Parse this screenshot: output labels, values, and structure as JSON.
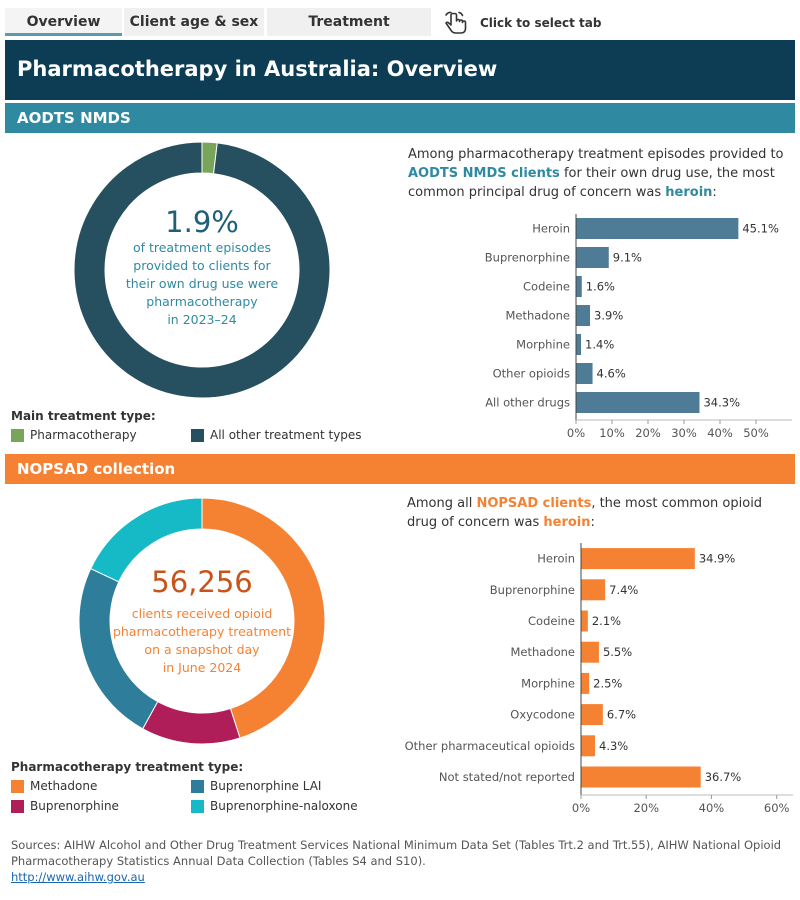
{
  "tabs": [
    {
      "label": "Overview",
      "active": true
    },
    {
      "label": "Client age & sex",
      "active": false
    },
    {
      "label": "Treatment",
      "active": false
    }
  ],
  "tab_hint": "Click to select tab",
  "tab_hint_icon": "pointer-hand-icon",
  "title": "Pharmacotherapy in Australia: Overview",
  "colors": {
    "navy": "#0c3d54",
    "teal": "#2f8aa1",
    "orange": "#f58233",
    "dark_teal": "#26505f",
    "green": "#78a55a",
    "bar_blue": "#4e7b95",
    "orange_text": "#c8541c",
    "methadone": "#f58233",
    "buprenorphine_lai": "#2e7d9a",
    "buprenorphine": "#b01e5a",
    "buprenorphine_naloxone": "#15bac6"
  },
  "aodts": {
    "section_title": "AODTS NMDS",
    "stat": "1.9%",
    "stat_lines": [
      "of treatment episodes",
      "provided to clients for",
      "their own drug use were",
      "pharmacotherapy",
      "in 2023–24"
    ],
    "legend_title": "Main treatment type:",
    "legend": [
      "Pharmacotherapy",
      "All other treatment types"
    ],
    "intro_parts": [
      "Among pharmacotherapy treatment episodes provided to",
      "AODTS NMDS clients",
      "for their own drug use, the most common principal drug of concern was",
      "heroin",
      ":"
    ]
  },
  "nopsad": {
    "section_title": "NOPSAD collection",
    "stat": "56,256",
    "stat_lines": [
      "clients received opioid",
      "pharmacotherapy treatment",
      "on a snapshot day",
      "in June 2024"
    ],
    "legend_title": "Pharmacotherapy treatment type:",
    "legend": [
      "Methadone",
      "Buprenorphine LAI",
      "Buprenorphine",
      "Buprenorphine-naloxone"
    ],
    "intro_parts": [
      "Among all",
      "NOPSAD clients",
      ", the most common opioid drug of concern was",
      "heroin",
      ":"
    ]
  },
  "chart_data": [
    {
      "type": "pie",
      "categories": [
        "Pharmacotherapy",
        "All other treatment types"
      ],
      "values": [
        1.9,
        98.1
      ],
      "legend_position": "bottom"
    },
    {
      "type": "bar",
      "orientation": "horizontal",
      "categories": [
        "Heroin",
        "Buprenorphine",
        "Codeine",
        "Methadone",
        "Morphine",
        "Other opioids",
        "All other drugs"
      ],
      "values": [
        45.1,
        9.1,
        1.6,
        3.9,
        1.4,
        4.6,
        34.3
      ],
      "value_labels": [
        "45.1%",
        "9.1%",
        "1.6%",
        "3.9%",
        "1.4%",
        "4.6%",
        "34.3%"
      ],
      "xlim": [
        0,
        60
      ],
      "xticks": [
        0,
        10,
        20,
        30,
        40,
        50
      ],
      "xtick_labels": [
        "0%",
        "10%",
        "20%",
        "30%",
        "40%",
        "50%"
      ],
      "grid": false
    },
    {
      "type": "pie",
      "categories": [
        "Methadone",
        "Buprenorphine",
        "Buprenorphine LAI",
        "Buprenorphine-naloxone"
      ],
      "values": [
        45,
        13,
        24,
        18
      ],
      "legend_position": "bottom"
    },
    {
      "type": "bar",
      "orientation": "horizontal",
      "categories": [
        "Heroin",
        "Buprenorphine",
        "Codeine",
        "Methadone",
        "Morphine",
        "Oxycodone",
        "Other pharmaceutical opioids",
        "Not stated/not reported"
      ],
      "values": [
        34.9,
        7.4,
        2.1,
        5.5,
        2.5,
        6.7,
        4.3,
        36.7
      ],
      "value_labels": [
        "34.9%",
        "7.4%",
        "2.1%",
        "5.5%",
        "2.5%",
        "6.7%",
        "4.3%",
        "36.7%"
      ],
      "xlim": [
        0,
        65
      ],
      "xticks": [
        0,
        20,
        40,
        60
      ],
      "xtick_labels": [
        "0%",
        "20%",
        "40%",
        "60%"
      ],
      "grid": false
    }
  ],
  "sources": {
    "text": "Sources: AIHW Alcohol and Other Drug Treatment Services National Minimum Data Set (Tables Trt.2 and Trt.55), AIHW National Opioid Pharmacotherapy Statistics Annual Data Collection (Tables S4 and S10).",
    "link": "http://www.aihw.gov.au"
  }
}
